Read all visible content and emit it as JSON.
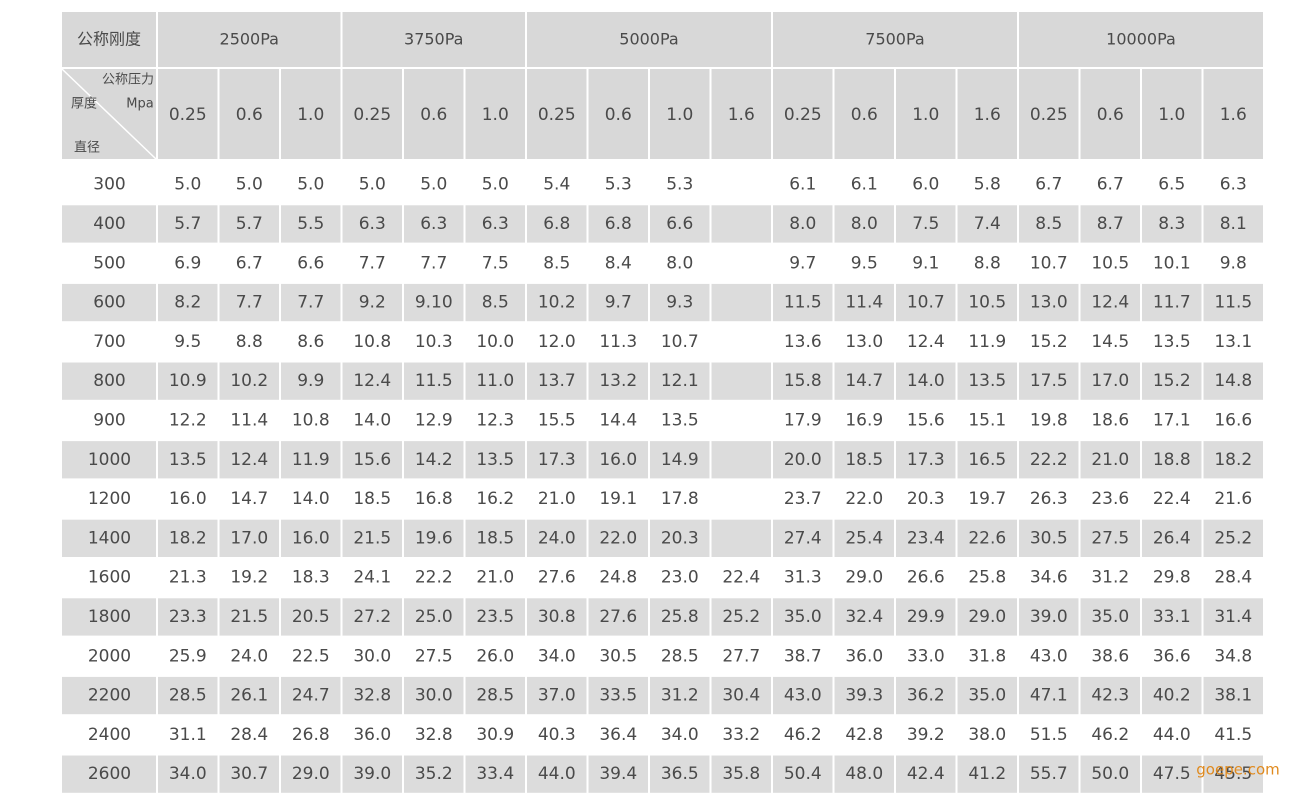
{
  "table": {
    "corner": "公称刚度",
    "diag": {
      "top": "公称压力",
      "left": "厚度",
      "right": "Mpa",
      "bottom": "直径"
    },
    "groups": [
      {
        "label": "2500Pa",
        "pressures": [
          "0.25",
          "0.6",
          "1.0"
        ]
      },
      {
        "label": "3750Pa",
        "pressures": [
          "0.25",
          "0.6",
          "1.0"
        ]
      },
      {
        "label": "5000Pa",
        "pressures": [
          "0.25",
          "0.6",
          "1.0",
          "1.6"
        ]
      },
      {
        "label": "7500Pa",
        "pressures": [
          "0.25",
          "0.6",
          "1.0",
          "1.6"
        ]
      },
      {
        "label": "10000Pa",
        "pressures": [
          "0.25",
          "0.6",
          "1.0",
          "1.6"
        ]
      }
    ],
    "rows": [
      [
        "300",
        "5.0",
        "5.0",
        "5.0",
        "5.0",
        "5.0",
        "5.0",
        "5.4",
        "5.3",
        "5.3",
        null,
        "6.1",
        "6.1",
        "6.0",
        "5.8",
        "6.7",
        "6.7",
        "6.5",
        "6.3"
      ],
      [
        "400",
        "5.7",
        "5.7",
        "5.5",
        "6.3",
        "6.3",
        "6.3",
        "6.8",
        "6.8",
        "6.6",
        null,
        "8.0",
        "8.0",
        "7.5",
        "7.4",
        "8.5",
        "8.7",
        "8.3",
        "8.1"
      ],
      [
        "500",
        "6.9",
        "6.7",
        "6.6",
        "7.7",
        "7.7",
        "7.5",
        "8.5",
        "8.4",
        "8.0",
        null,
        "9.7",
        "9.5",
        "9.1",
        "8.8",
        "10.7",
        "10.5",
        "10.1",
        "9.8"
      ],
      [
        "600",
        "8.2",
        "7.7",
        "7.7",
        "9.2",
        "9.10",
        "8.5",
        "10.2",
        "9.7",
        "9.3",
        null,
        "11.5",
        "11.4",
        "10.7",
        "10.5",
        "13.0",
        "12.4",
        "11.7",
        "11.5"
      ],
      [
        "700",
        "9.5",
        "8.8",
        "8.6",
        "10.8",
        "10.3",
        "10.0",
        "12.0",
        "11.3",
        "10.7",
        null,
        "13.6",
        "13.0",
        "12.4",
        "11.9",
        "15.2",
        "14.5",
        "13.5",
        "13.1"
      ],
      [
        "800",
        "10.9",
        "10.2",
        "9.9",
        "12.4",
        "11.5",
        "11.0",
        "13.7",
        "13.2",
        "12.1",
        null,
        "15.8",
        "14.7",
        "14.0",
        "13.5",
        "17.5",
        "17.0",
        "15.2",
        "14.8"
      ],
      [
        "900",
        "12.2",
        "11.4",
        "10.8",
        "14.0",
        "12.9",
        "12.3",
        "15.5",
        "14.4",
        "13.5",
        null,
        "17.9",
        "16.9",
        "15.6",
        "15.1",
        "19.8",
        "18.6",
        "17.1",
        "16.6"
      ],
      [
        "1000",
        "13.5",
        "12.4",
        "11.9",
        "15.6",
        "14.2",
        "13.5",
        "17.3",
        "16.0",
        "14.9",
        null,
        "20.0",
        "18.5",
        "17.3",
        "16.5",
        "22.2",
        "21.0",
        "18.8",
        "18.2"
      ],
      [
        "1200",
        "16.0",
        "14.7",
        "14.0",
        "18.5",
        "16.8",
        "16.2",
        "21.0",
        "19.1",
        "17.8",
        null,
        "23.7",
        "22.0",
        "20.3",
        "19.7",
        "26.3",
        "23.6",
        "22.4",
        "21.6"
      ],
      [
        "1400",
        "18.2",
        "17.0",
        "16.0",
        "21.5",
        "19.6",
        "18.5",
        "24.0",
        "22.0",
        "20.3",
        null,
        "27.4",
        "25.4",
        "23.4",
        "22.6",
        "30.5",
        "27.5",
        "26.4",
        "25.2"
      ],
      [
        "1600",
        "21.3",
        "19.2",
        "18.3",
        "24.1",
        "22.2",
        "21.0",
        "27.6",
        "24.8",
        "23.0",
        "22.4",
        "31.3",
        "29.0",
        "26.6",
        "25.8",
        "34.6",
        "31.2",
        "29.8",
        "28.4"
      ],
      [
        "1800",
        "23.3",
        "21.5",
        "20.5",
        "27.2",
        "25.0",
        "23.5",
        "30.8",
        "27.6",
        "25.8",
        "25.2",
        "35.0",
        "32.4",
        "29.9",
        "29.0",
        "39.0",
        "35.0",
        "33.1",
        "31.4"
      ],
      [
        "2000",
        "25.9",
        "24.0",
        "22.5",
        "30.0",
        "27.5",
        "26.0",
        "34.0",
        "30.5",
        "28.5",
        "27.7",
        "38.7",
        "36.0",
        "33.0",
        "31.8",
        "43.0",
        "38.6",
        "36.6",
        "34.8"
      ],
      [
        "2200",
        "28.5",
        "26.1",
        "24.7",
        "32.8",
        "30.0",
        "28.5",
        "37.0",
        "33.5",
        "31.2",
        "30.4",
        "43.0",
        "39.3",
        "36.2",
        "35.0",
        "47.1",
        "42.3",
        "40.2",
        "38.1"
      ],
      [
        "2400",
        "31.1",
        "28.4",
        "26.8",
        "36.0",
        "32.8",
        "30.9",
        "40.3",
        "36.4",
        "34.0",
        "33.2",
        "46.2",
        "42.8",
        "39.2",
        "38.0",
        "51.5",
        "46.2",
        "44.0",
        "41.5"
      ],
      [
        "2600",
        "34.0",
        "30.7",
        "29.0",
        "39.0",
        "35.2",
        "33.4",
        "44.0",
        "39.4",
        "36.5",
        "35.8",
        "50.4",
        "48.0",
        "42.4",
        "41.2",
        "55.7",
        "50.0",
        "47.5",
        "45.5"
      ]
    ]
  },
  "watermark": "goepe.com"
}
